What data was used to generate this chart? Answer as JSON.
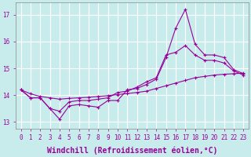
{
  "background_color": "#c8ecec",
  "grid_color": "#ffffff",
  "line_color": "#990099",
  "x_ticks": [
    0,
    1,
    2,
    3,
    4,
    5,
    6,
    7,
    8,
    9,
    10,
    11,
    12,
    13,
    14,
    15,
    16,
    17,
    18,
    19,
    20,
    21,
    22,
    23
  ],
  "xlabel": "Windchill (Refroidissement éolien,°C)",
  "ylim": [
    12.75,
    17.45
  ],
  "yticks": [
    13,
    14,
    15,
    16,
    17
  ],
  "line1_y": [
    14.2,
    13.9,
    13.9,
    13.5,
    13.1,
    13.6,
    13.65,
    13.6,
    13.55,
    13.8,
    13.8,
    14.2,
    14.25,
    14.4,
    14.6,
    15.4,
    16.5,
    17.2,
    15.9,
    15.5,
    15.5,
    15.4,
    14.95,
    14.8
  ],
  "line2_y": [
    14.2,
    13.9,
    13.9,
    13.5,
    13.4,
    13.75,
    13.8,
    13.8,
    13.85,
    13.9,
    14.1,
    14.15,
    14.3,
    14.5,
    14.65,
    15.5,
    15.6,
    15.85,
    15.5,
    15.3,
    15.3,
    15.2,
    14.9,
    14.75
  ],
  "line3_y": [
    14.2,
    14.05,
    13.95,
    13.9,
    13.85,
    13.88,
    13.9,
    13.92,
    13.95,
    13.98,
    14.02,
    14.06,
    14.1,
    14.15,
    14.25,
    14.35,
    14.45,
    14.55,
    14.65,
    14.7,
    14.75,
    14.78,
    14.8,
    14.82
  ],
  "marker": "+",
  "marker_size": 3,
  "line_width": 0.8,
  "xlabel_fontsize": 7,
  "tick_fontsize": 5.5
}
